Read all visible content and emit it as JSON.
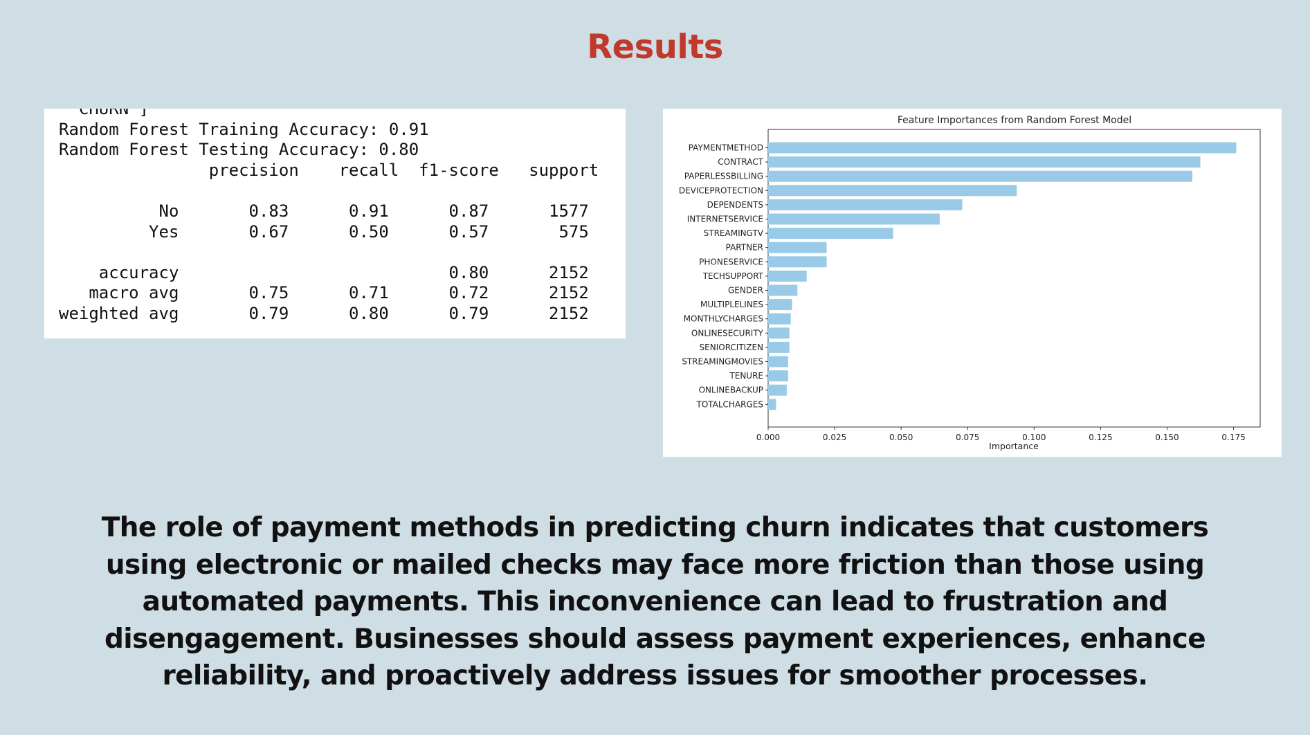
{
  "slide": {
    "title": "Results",
    "body": "The role of payment methods in predicting churn indicates that customers using electronic or mailed checks may face more friction than those using automated payments. This inconvenience can lead to frustration and disengagement. Businesses should assess payment experiences, enhance reliability, and proactively address issues for smoother processes."
  },
  "report": {
    "cut_line": "'CHURN']",
    "train_label": "Random Forest Training Accuracy:",
    "train_value": "0.91",
    "test_label": "Random Forest Testing Accuracy:",
    "test_value": "0.80",
    "headers": [
      "precision",
      "recall",
      "f1-score",
      "support"
    ],
    "rows": [
      {
        "label": "No",
        "cells": [
          "0.83",
          "0.91",
          "0.87",
          "1577"
        ]
      },
      {
        "label": "Yes",
        "cells": [
          "0.67",
          "0.50",
          "0.57",
          "575"
        ]
      }
    ],
    "summary": [
      {
        "label": "accuracy",
        "cells": [
          "",
          "",
          "0.80",
          "2152"
        ]
      },
      {
        "label": "macro avg",
        "cells": [
          "0.75",
          "0.71",
          "0.72",
          "2152"
        ]
      },
      {
        "label": "weighted avg",
        "cells": [
          "0.79",
          "0.80",
          "0.79",
          "2152"
        ]
      }
    ]
  },
  "chart_data": {
    "type": "bar",
    "orientation": "horizontal",
    "title": "Feature Importances from Random Forest Model",
    "xlabel": "Importance",
    "ylabel": "",
    "xlim": [
      0,
      0.185
    ],
    "xticks": [
      "0.000",
      "0.025",
      "0.050",
      "0.075",
      "0.100",
      "0.125",
      "0.150",
      "0.175"
    ],
    "bar_color": "#99cbe9",
    "grid": false,
    "categories": [
      "PAYMENTMETHOD",
      "CONTRACT",
      "PAPERLESSBILLING",
      "DEVICEPROTECTION",
      "DEPENDENTS",
      "INTERNETSERVICE",
      "STREAMINGTV",
      "PARTNER",
      "PHONESERVICE",
      "TECHSUPPORT",
      "GENDER",
      "MULTIPLELINES",
      "MONTHLYCHARGES",
      "ONLINESECURITY",
      "SENIORCITIZEN",
      "STREAMINGMOVIES",
      "TENURE",
      "ONLINEBACKUP",
      "TOTALCHARGES"
    ],
    "values": [
      0.176,
      0.1625,
      0.1595,
      0.0935,
      0.073,
      0.0645,
      0.047,
      0.022,
      0.022,
      0.0145,
      0.011,
      0.009,
      0.0085,
      0.008,
      0.008,
      0.0075,
      0.0075,
      0.007,
      0.003
    ]
  }
}
